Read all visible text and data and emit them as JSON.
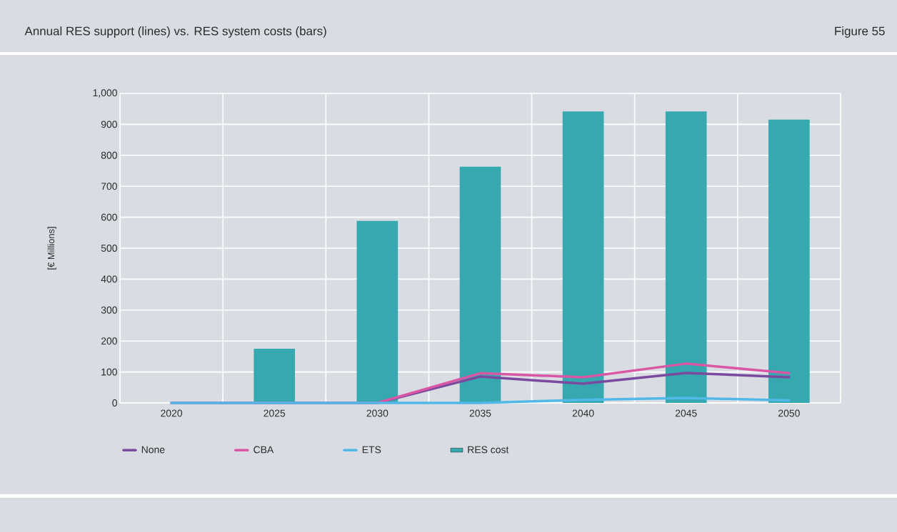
{
  "chart_data": {
    "type": "bar",
    "title": "Annual RES support (lines) vs. RES system costs (bars)",
    "annotations": [
      "Figure 55"
    ],
    "ylabel": "[€ Millions]",
    "categories": [
      "2020",
      "2025",
      "2030",
      "2035",
      "2040",
      "2045",
      "2050"
    ],
    "series": [
      {
        "name": "None",
        "type": "line",
        "color": "#7a4a9e",
        "values": [
          0,
          0,
          0,
          85,
          62,
          97,
          83
        ]
      },
      {
        "name": "CBA",
        "type": "line",
        "color": "#d957a4",
        "values": [
          0,
          0,
          0,
          96,
          83,
          127,
          96
        ]
      },
      {
        "name": "ETS",
        "type": "line",
        "color": "#52b8e8",
        "values": [
          0,
          0,
          0,
          0,
          10,
          16,
          8
        ]
      },
      {
        "name": "RES cost",
        "color": "#36a9b0",
        "values": [
          null,
          175,
          588,
          763,
          942,
          942,
          915
        ]
      }
    ],
    "ylim": [
      0,
      1000
    ],
    "yticks": [
      0,
      100,
      200,
      300,
      400,
      500,
      600,
      700,
      800,
      900,
      {
        "value": 1000,
        "label": "1,000"
      }
    ],
    "grid": true,
    "legend": "bottom",
    "marker": "none",
    "line_style": "solid"
  }
}
